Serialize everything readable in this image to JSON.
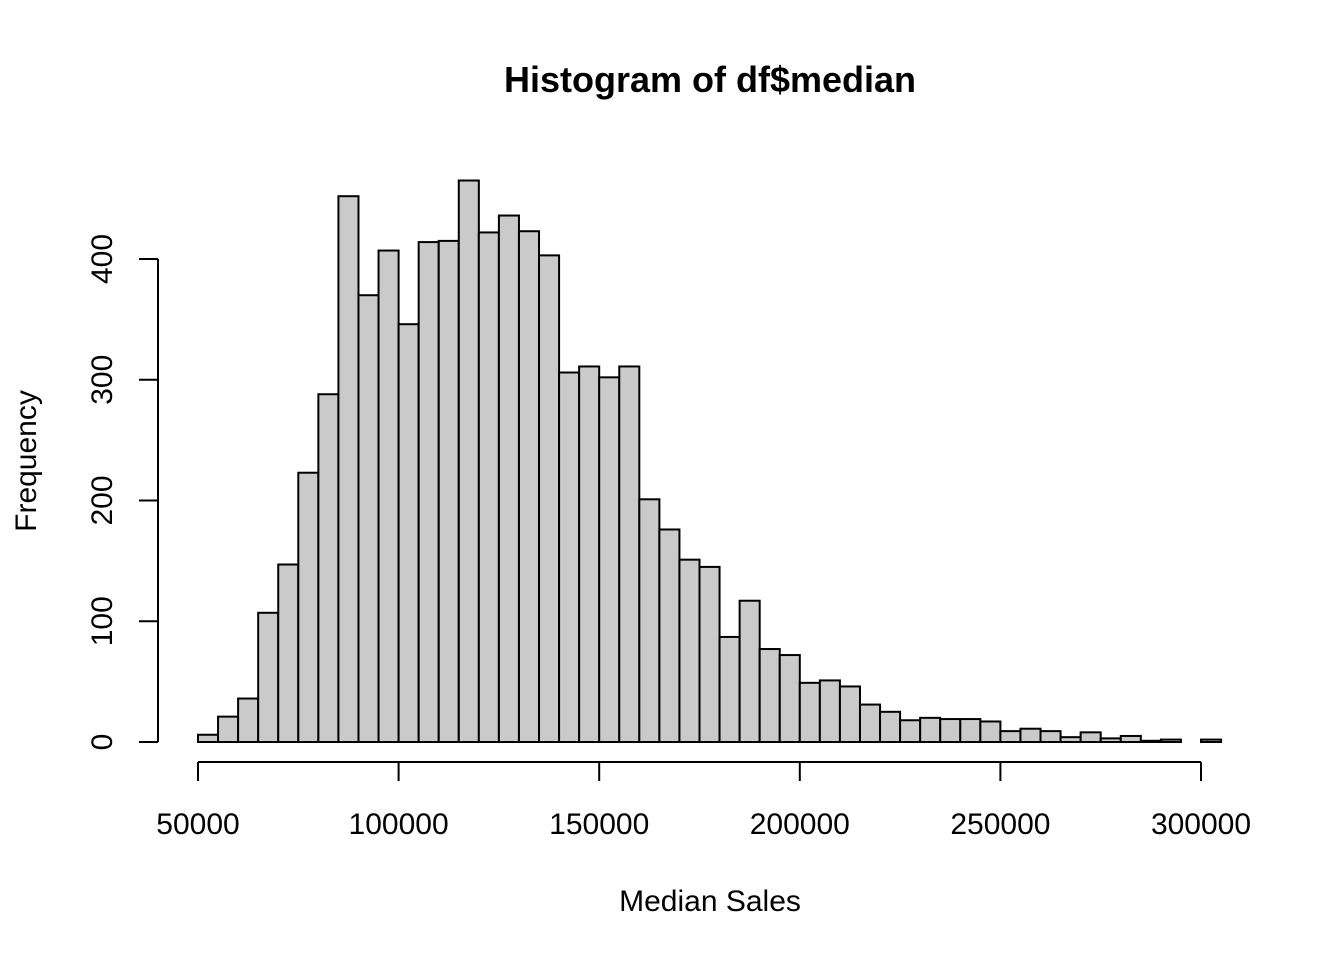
{
  "chart_data": {
    "type": "histogram",
    "title": "Histogram of df$median",
    "xlabel": "Median Sales",
    "ylabel": "Frequency",
    "bin_width": 5000,
    "bins": [
      [
        50000,
        55000,
        6
      ],
      [
        55000,
        60000,
        21
      ],
      [
        60000,
        65000,
        36
      ],
      [
        65000,
        70000,
        107
      ],
      [
        70000,
        75000,
        147
      ],
      [
        75000,
        80000,
        223
      ],
      [
        80000,
        85000,
        288
      ],
      [
        85000,
        90000,
        452
      ],
      [
        90000,
        95000,
        370
      ],
      [
        95000,
        100000,
        407
      ],
      [
        100000,
        105000,
        346
      ],
      [
        105000,
        110000,
        414
      ],
      [
        110000,
        115000,
        415
      ],
      [
        115000,
        120000,
        465
      ],
      [
        120000,
        125000,
        422
      ],
      [
        125000,
        130000,
        436
      ],
      [
        130000,
        135000,
        423
      ],
      [
        135000,
        140000,
        403
      ],
      [
        140000,
        145000,
        306
      ],
      [
        145000,
        150000,
        311
      ],
      [
        150000,
        155000,
        302
      ],
      [
        155000,
        160000,
        311
      ],
      [
        160000,
        165000,
        201
      ],
      [
        165000,
        170000,
        176
      ],
      [
        170000,
        175000,
        151
      ],
      [
        175000,
        180000,
        145
      ],
      [
        180000,
        185000,
        87
      ],
      [
        185000,
        190000,
        117
      ],
      [
        190000,
        195000,
        77
      ],
      [
        195000,
        200000,
        72
      ],
      [
        200000,
        205000,
        49
      ],
      [
        205000,
        210000,
        51
      ],
      [
        210000,
        215000,
        46
      ],
      [
        215000,
        220000,
        31
      ],
      [
        220000,
        225000,
        25
      ],
      [
        225000,
        230000,
        18
      ],
      [
        230000,
        235000,
        20
      ],
      [
        235000,
        240000,
        19
      ],
      [
        240000,
        245000,
        19
      ],
      [
        245000,
        250000,
        17
      ],
      [
        250000,
        255000,
        9
      ],
      [
        255000,
        260000,
        11
      ],
      [
        260000,
        265000,
        9
      ],
      [
        265000,
        270000,
        4
      ],
      [
        270000,
        275000,
        8
      ],
      [
        275000,
        280000,
        3
      ],
      [
        280000,
        285000,
        5
      ],
      [
        285000,
        290000,
        1
      ],
      [
        290000,
        295000,
        2
      ],
      [
        295000,
        300000,
        0
      ],
      [
        300000,
        305000,
        2
      ]
    ],
    "x_ticks": [
      50000,
      100000,
      150000,
      200000,
      250000,
      300000
    ],
    "x_tick_labels": [
      "50000",
      "100000",
      "150000",
      "200000",
      "250000",
      "300000"
    ],
    "y_ticks": [
      0,
      100,
      200,
      300,
      400
    ],
    "y_tick_labels": [
      "0",
      "100",
      "200",
      "300",
      "400"
    ],
    "xlim": [
      50000,
      305000
    ],
    "ylim": [
      0,
      465
    ],
    "grid": false,
    "bar_color": "#cacaca",
    "border_color": "#000000"
  }
}
